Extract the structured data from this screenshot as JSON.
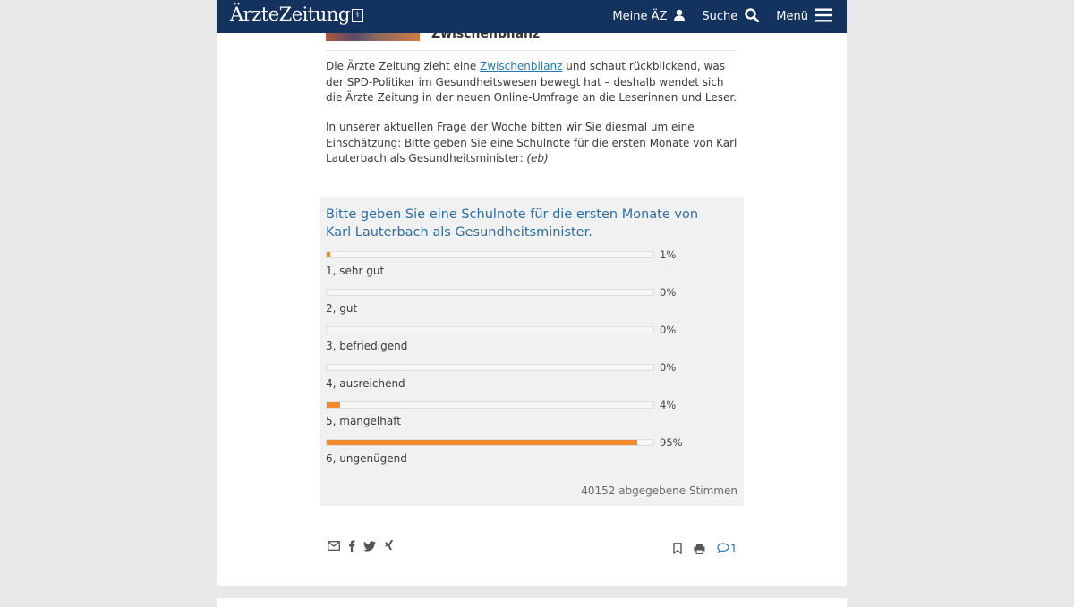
{
  "header": {
    "logo": "ÄrzteZeitung",
    "nav": [
      {
        "label": "Meine ÄZ",
        "icon": "user-icon"
      },
      {
        "label": "Suche",
        "icon": "search-icon"
      },
      {
        "label": "Menü",
        "icon": "hamburger-icon"
      }
    ]
  },
  "article": {
    "related_title": "Zwischenbilanz",
    "p1_before": "Die Ärzte Zeitung zieht eine ",
    "p1_link": "Zwischenbilanz",
    "p1_after": " und schaut rückblickend, was der SPD-Politiker im Gesundheitswesen bewegt hat – deshalb wendet sich die Ärzte Zeitung in der neuen Online-Umfrage an die Leserinnen und Leser.",
    "p2_text": "In unserer aktuellen Frage der Woche bitten wir Sie diesmal um eine Einschätzung: Bitte geben Sie eine Schulnote für die ersten Monate von Karl Lauterbach als Gesundheitsminister: ",
    "p2_author": "(eb)"
  },
  "poll": {
    "question": "Bitte geben Sie eine Schulnote für die ersten Monate von Karl Lauterbach als Gesundheitsminister.",
    "options": [
      {
        "label": "1, sehr gut",
        "percent": 1,
        "percent_text": "1%"
      },
      {
        "label": "2, gut",
        "percent": 0,
        "percent_text": "0%"
      },
      {
        "label": "3, befriedigend",
        "percent": 0,
        "percent_text": "0%"
      },
      {
        "label": "4, ausreichend",
        "percent": 0,
        "percent_text": "0%"
      },
      {
        "label": "5, mangelhaft",
        "percent": 4,
        "percent_text": "4%"
      },
      {
        "label": "6, ungenügend",
        "percent": 95,
        "percent_text": "95%"
      }
    ],
    "votes": "40152 abgegebene Stimmen",
    "bar_color": "#f28a2e"
  },
  "share": {
    "icons": [
      "mail-icon",
      "facebook-icon",
      "twitter-icon",
      "xing-icon"
    ]
  },
  "tools": {
    "icons": [
      "bookmark-icon",
      "print-icon",
      "comment-icon"
    ],
    "comment_count": "1"
  },
  "colors": {
    "header_bg": "#14325e",
    "link": "#2578b5",
    "poll_question": "#2d6e9e"
  }
}
